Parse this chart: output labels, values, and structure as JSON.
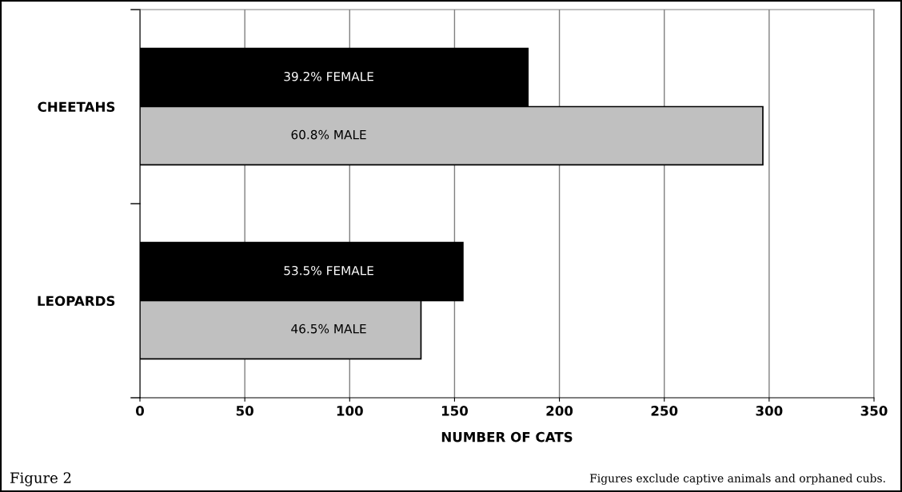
{
  "chart_data": {
    "type": "bar",
    "orientation": "horizontal",
    "categories": [
      "CHEETAHS",
      "LEOPARDS"
    ],
    "series": [
      {
        "color": "#000000",
        "values": [
          185,
          154
        ]
      },
      {
        "color": "#c0c0c0",
        "values": [
          297,
          134
        ]
      }
    ],
    "xlabel": "NUMBER OF CATS",
    "xlim": [
      0,
      350
    ],
    "xticks": [
      0,
      50,
      100,
      150,
      200,
      250,
      300,
      350
    ],
    "grid": "x",
    "legend": false,
    "annotations": [
      "39.2% FEMALE",
      "60.8% MALE",
      "53.5% FEMALE",
      "46.5% MALE",
      "Figure 2",
      "Figures exclude captive animals and orphaned cubs."
    ]
  }
}
